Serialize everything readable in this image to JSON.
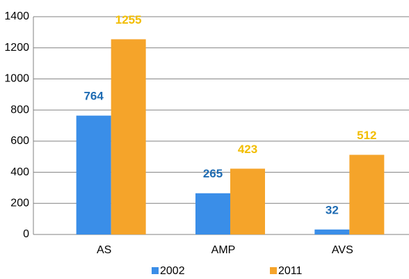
{
  "chart_data": {
    "type": "bar",
    "categories": [
      "AS",
      "AMP",
      "AVS"
    ],
    "series": [
      {
        "name": "2002",
        "color": "#3a8ee8",
        "label_color": "#1f6cb3",
        "values": [
          764,
          265,
          32
        ]
      },
      {
        "name": "2011",
        "color": "#f5a42a",
        "label_color": "#f2bd00",
        "values": [
          1255,
          423,
          512
        ]
      }
    ],
    "ylim": [
      0,
      1400
    ],
    "yticks": [
      0,
      200,
      400,
      600,
      800,
      1000,
      1200,
      1400
    ],
    "grid": true,
    "legend": "bottom"
  }
}
